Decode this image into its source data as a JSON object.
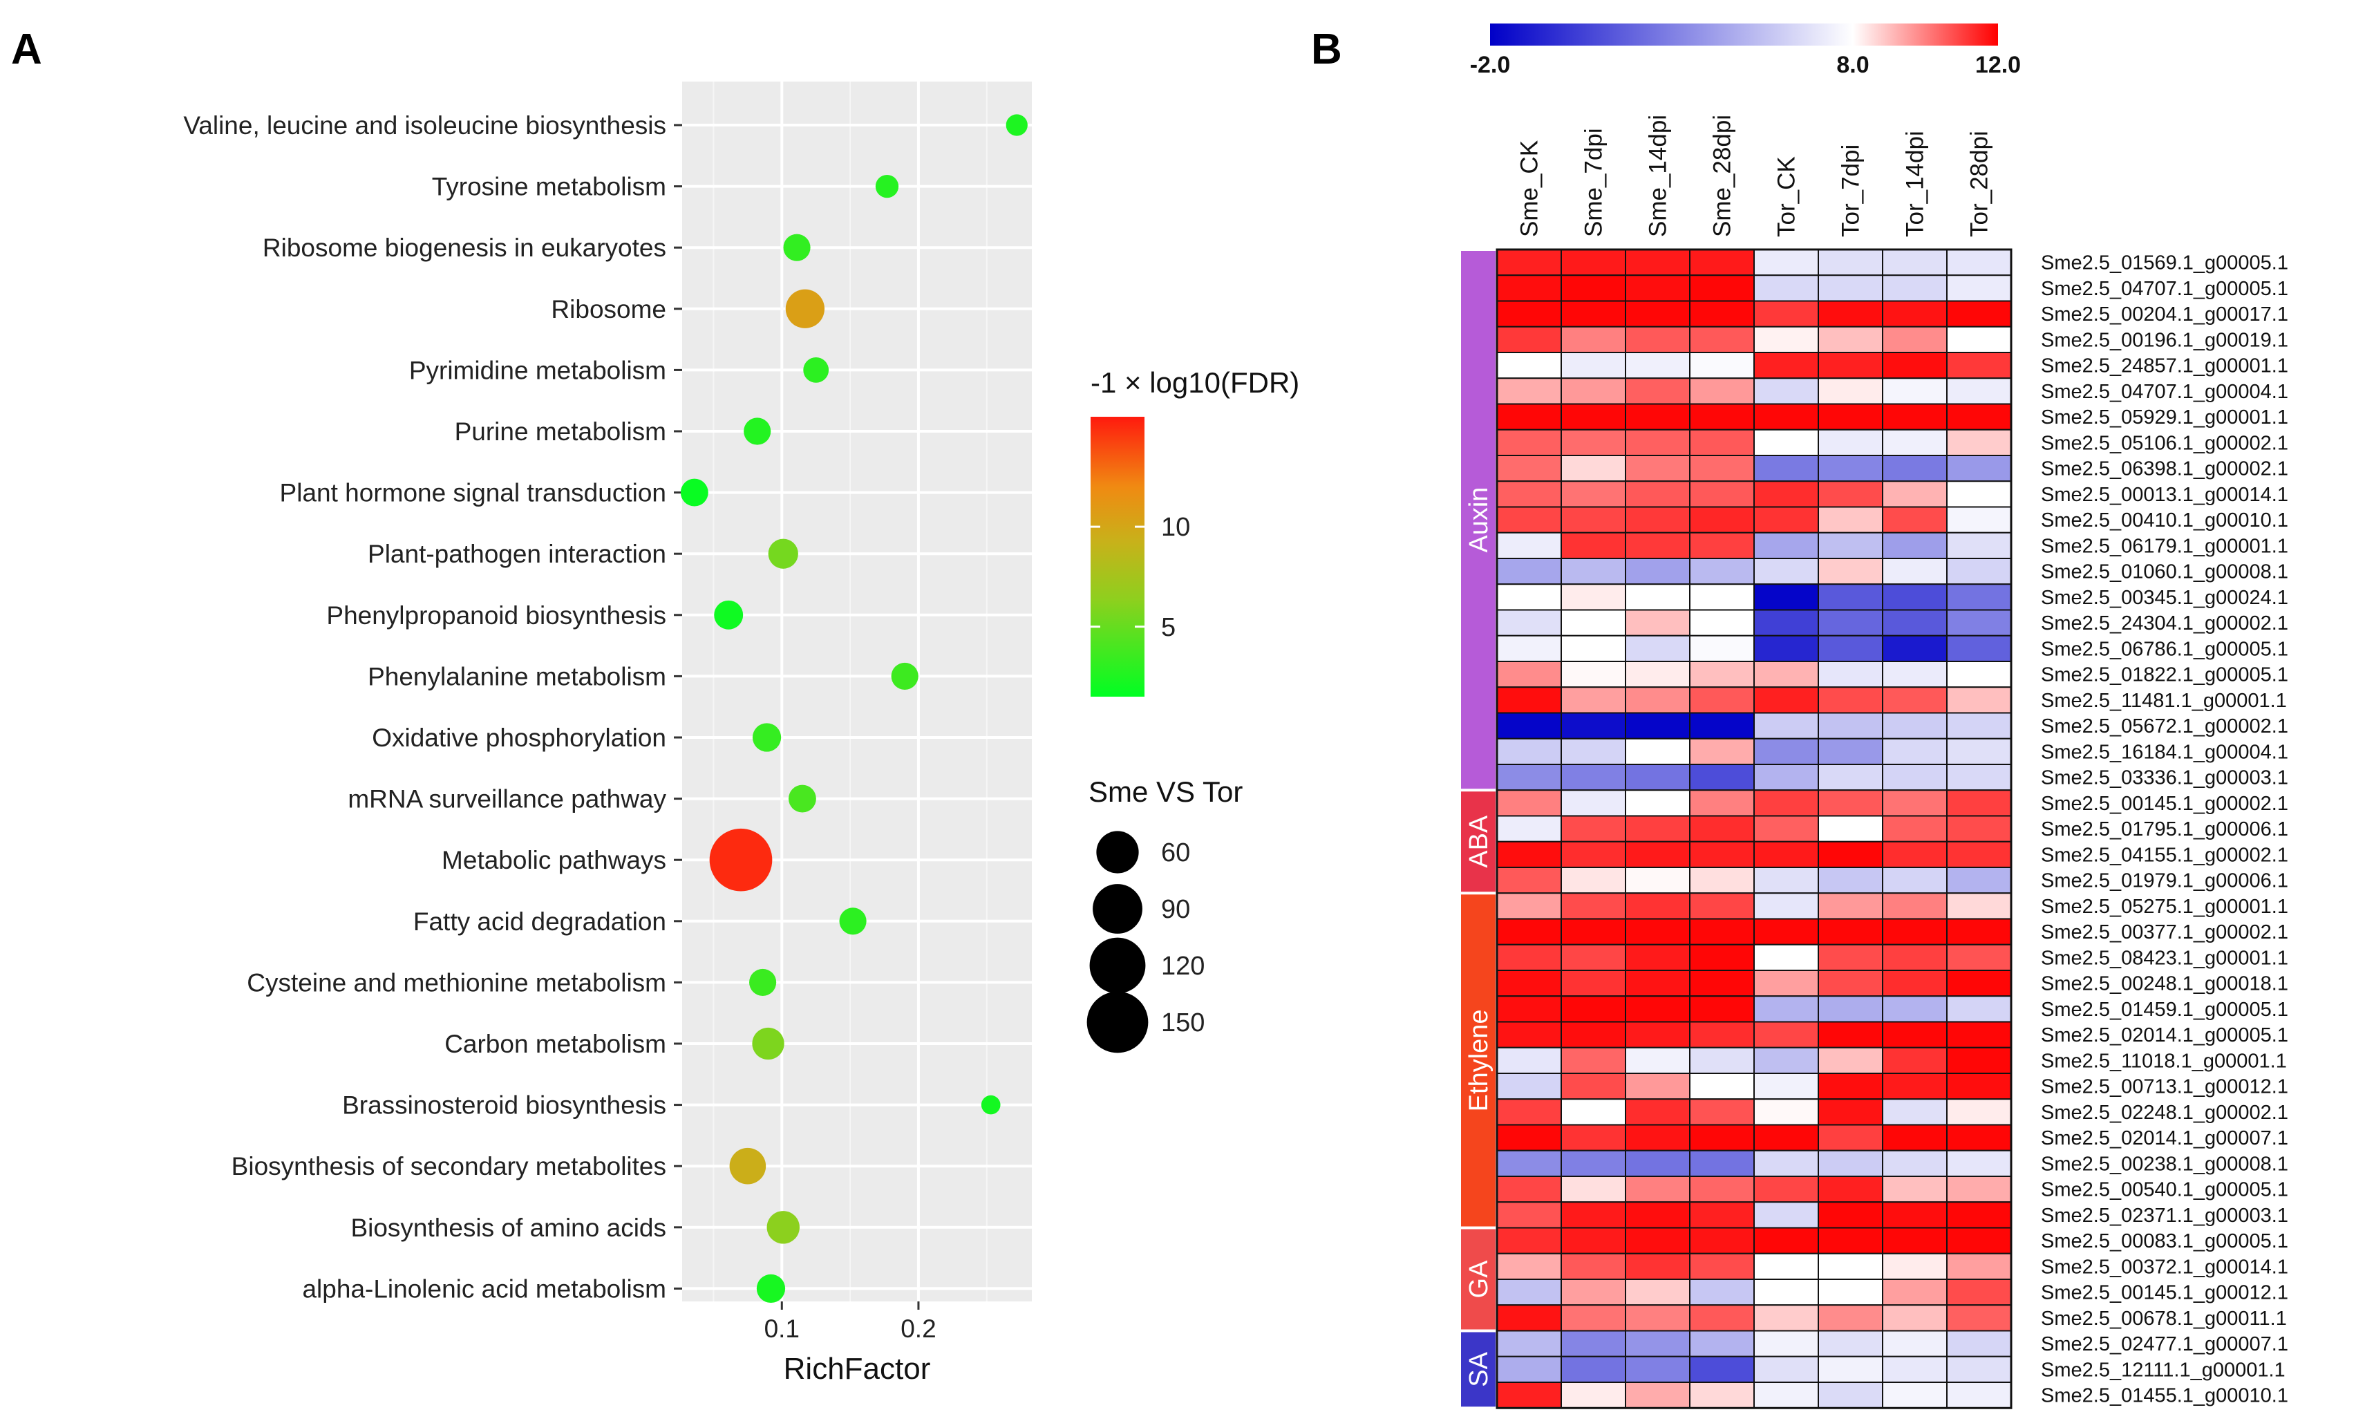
{
  "panelA": {
    "letter": "A",
    "chart_data": {
      "type": "scatter",
      "xlabel": "RichFactor",
      "xlim": [
        0.027,
        0.283
      ],
      "xticks": [
        0.1,
        0.2
      ],
      "xtick_labels": [
        "0.1",
        "0.2"
      ],
      "color_legend": {
        "title": "-1 × log10(FDR)",
        "ticks": [
          5,
          10
        ],
        "tick_labels": [
          "5",
          "10"
        ],
        "range": [
          1.5,
          15.5
        ]
      },
      "size_legend": {
        "title": "Sme VS Tor",
        "values": [
          60,
          90,
          120,
          150
        ],
        "labels": [
          "60",
          "90",
          "120",
          "150"
        ]
      },
      "terms": [
        {
          "name": "Valine, leucine and isoleucine biosynthesis",
          "rich": 0.272,
          "count": 8,
          "neglog": 2.5
        },
        {
          "name": "Tyrosine metabolism",
          "rich": 0.177,
          "count": 10,
          "neglog": 2.8
        },
        {
          "name": "Ribosome biogenesis in eukaryotes",
          "rich": 0.111,
          "count": 17,
          "neglog": 3.2
        },
        {
          "name": "Ribosome",
          "rich": 0.117,
          "count": 48,
          "neglog": 10.5
        },
        {
          "name": "Pyrimidine metabolism",
          "rich": 0.125,
          "count": 14,
          "neglog": 3.0
        },
        {
          "name": "Purine metabolism",
          "rich": 0.082,
          "count": 17,
          "neglog": 2.7
        },
        {
          "name": "Plant hormone signal transduction",
          "rich": 0.036,
          "count": 18,
          "neglog": 1.8
        },
        {
          "name": "Plant-pathogen interaction",
          "rich": 0.101,
          "count": 23,
          "neglog": 5.5
        },
        {
          "name": "Phenylpropanoid biosynthesis",
          "rich": 0.061,
          "count": 21,
          "neglog": 2.0
        },
        {
          "name": "Phenylalanine metabolism",
          "rich": 0.19,
          "count": 17,
          "neglog": 3.6
        },
        {
          "name": "Oxidative phosphorylation",
          "rich": 0.089,
          "count": 20,
          "neglog": 3.3
        },
        {
          "name": "mRNA surveillance pathway",
          "rich": 0.115,
          "count": 18,
          "neglog": 4.0
        },
        {
          "name": "Metabolic pathways",
          "rich": 0.07,
          "count": 158,
          "neglog": 15.0
        },
        {
          "name": "Fatty acid degradation",
          "rich": 0.152,
          "count": 17,
          "neglog": 3.0
        },
        {
          "name": "Cysteine and methionine metabolism",
          "rich": 0.086,
          "count": 17,
          "neglog": 3.5
        },
        {
          "name": "Carbon metabolism",
          "rich": 0.09,
          "count": 28,
          "neglog": 5.8
        },
        {
          "name": "Brassinosteroid biosynthesis",
          "rich": 0.253,
          "count": 5,
          "neglog": 2.2
        },
        {
          "name": "Biosynthesis of secondary metabolites",
          "rich": 0.075,
          "count": 40,
          "neglog": 9.5
        },
        {
          "name": "Biosynthesis of amino acids",
          "rich": 0.101,
          "count": 30,
          "neglog": 6.3
        },
        {
          "name": "alpha-Linolenic acid metabolism",
          "rich": 0.092,
          "count": 20,
          "neglog": 2.3
        }
      ]
    }
  },
  "panelB": {
    "letter": "B",
    "chart_data": {
      "type": "heatmap",
      "scale": {
        "ticks": [
          -2.0,
          8.0,
          12.0
        ],
        "tick_labels": [
          "-2.0",
          "8.0",
          "12.0"
        ],
        "min": -2.0,
        "mid": 8.0,
        "max": 12.0
      },
      "columns": [
        "Sme_CK",
        "Sme_7dpi",
        "Sme_14dpi",
        "Sme_28dpi",
        "Tor_CK",
        "Tor_7dpi",
        "Tor_14dpi",
        "Tor_28dpi"
      ],
      "groups": [
        {
          "name": "Auxin",
          "rows": 21,
          "color": "#b65bd8"
        },
        {
          "name": "ABA",
          "rows": 4,
          "color": "#e8334a"
        },
        {
          "name": "Ethylene",
          "rows": 13,
          "color": "#f5451d"
        },
        {
          "name": "GA",
          "rows": 4,
          "color": "#ef4b4b"
        },
        {
          "name": "SA",
          "rows": 3,
          "color": "#3b36c8"
        }
      ],
      "genes": [
        {
          "id": "Sme2.5_01569.1_g00005.1",
          "values": [
            11.5,
            11.6,
            11.6,
            11.6,
            7.2,
            6.8,
            6.8,
            7.0
          ]
        },
        {
          "id": "Sme2.5_04707.1_g00005.1",
          "values": [
            11.8,
            11.9,
            11.8,
            11.9,
            6.5,
            6.5,
            6.5,
            7.2
          ]
        },
        {
          "id": "Sme2.5_00204.1_g00017.1",
          "values": [
            11.9,
            11.9,
            11.9,
            11.9,
            11.1,
            11.8,
            11.7,
            11.9
          ]
        },
        {
          "id": "Sme2.5_00196.1_g00019.1",
          "values": [
            11.1,
            10.0,
            10.6,
            10.6,
            8.2,
            9.0,
            9.8,
            8.0
          ]
        },
        {
          "id": "Sme2.5_24857.1_g00001.1",
          "values": [
            8.0,
            7.3,
            7.4,
            7.8,
            11.5,
            11.5,
            11.8,
            11.1
          ]
        },
        {
          "id": "Sme2.5_04707.1_g00004.1",
          "values": [
            9.3,
            9.6,
            10.5,
            9.6,
            6.5,
            8.3,
            7.6,
            7.3
          ]
        },
        {
          "id": "Sme2.5_05929.1_g00001.1",
          "values": [
            11.9,
            11.9,
            11.9,
            11.9,
            11.9,
            11.9,
            11.9,
            11.9
          ]
        },
        {
          "id": "Sme2.5_05106.1_g00002.1",
          "values": [
            10.5,
            10.3,
            10.5,
            10.6,
            8.0,
            7.2,
            7.4,
            8.8
          ]
        },
        {
          "id": "Sme2.5_06398.1_g00002.1",
          "values": [
            10.3,
            8.6,
            10.1,
            10.3,
            2.8,
            3.2,
            2.8,
            4.0
          ]
        },
        {
          "id": "Sme2.5_00013.1_g00014.1",
          "values": [
            10.5,
            10.2,
            10.6,
            10.6,
            11.3,
            10.8,
            9.2,
            8.0
          ]
        },
        {
          "id": "Sme2.5_00410.1_g00010.1",
          "values": [
            10.9,
            10.9,
            11.1,
            11.4,
            11.2,
            8.9,
            10.8,
            7.6
          ]
        },
        {
          "id": "Sme2.5_06179.1_g00001.1",
          "values": [
            7.3,
            11.2,
            11.1,
            11.0,
            4.5,
            5.5,
            4.2,
            6.8
          ]
        },
        {
          "id": "Sme2.5_01060.1_g00008.1",
          "values": [
            4.5,
            5.3,
            4.3,
            5.3,
            6.5,
            8.8,
            7.3,
            6.3
          ]
        },
        {
          "id": "Sme2.5_00345.1_g00024.1",
          "values": [
            8.0,
            8.3,
            8.0,
            8.0,
            -1.8,
            1.5,
            1.0,
            2.5
          ]
        },
        {
          "id": "Sme2.5_24304.1_g00002.1",
          "values": [
            6.8,
            8.0,
            9.0,
            8.0,
            0.5,
            2.0,
            1.5,
            3.0
          ]
        },
        {
          "id": "Sme2.5_06786.1_g00005.1",
          "values": [
            7.5,
            8.0,
            6.5,
            7.8,
            -0.5,
            1.5,
            -1.0,
            1.8
          ]
        },
        {
          "id": "Sme2.5_01822.1_g00005.1",
          "values": [
            9.8,
            8.1,
            8.3,
            9.0,
            9.2,
            7.0,
            7.2,
            8.0
          ]
        },
        {
          "id": "Sme2.5_11481.1_g00001.1",
          "values": [
            11.8,
            9.5,
            9.8,
            10.6,
            11.5,
            10.8,
            10.6,
            9.0
          ]
        },
        {
          "id": "Sme2.5_05672.1_g00002.1",
          "values": [
            -1.8,
            -1.5,
            -1.8,
            -1.8,
            6.0,
            5.6,
            6.0,
            6.3
          ]
        },
        {
          "id": "Sme2.5_16184.1_g00004.1",
          "values": [
            6.0,
            6.3,
            8.0,
            9.3,
            3.5,
            4.0,
            6.5,
            6.8
          ]
        },
        {
          "id": "Sme2.5_03336.1_g00003.1",
          "values": [
            3.5,
            3.0,
            2.5,
            1.0,
            5.0,
            6.5,
            6.3,
            6.5
          ]
        },
        {
          "id": "Sme2.5_00145.1_g00002.1",
          "values": [
            10.0,
            7.2,
            8.0,
            10.0,
            11.0,
            10.6,
            10.2,
            11.0
          ]
        },
        {
          "id": "Sme2.5_01795.1_g00006.1",
          "values": [
            7.3,
            10.8,
            11.0,
            11.3,
            10.5,
            8.0,
            10.5,
            10.8
          ]
        },
        {
          "id": "Sme2.5_04155.1_g00002.1",
          "values": [
            11.8,
            11.3,
            11.6,
            11.5,
            11.6,
            11.9,
            11.3,
            11.2
          ]
        },
        {
          "id": "Sme2.5_01979.1_g00006.1",
          "values": [
            10.6,
            8.4,
            8.1,
            8.5,
            6.8,
            5.8,
            6.3,
            5.0
          ]
        },
        {
          "id": "Sme2.5_05275.1_g00001.1",
          "values": [
            9.5,
            10.8,
            11.2,
            10.9,
            7.0,
            9.6,
            10.0,
            8.6
          ]
        },
        {
          "id": "Sme2.5_00377.1_g00002.1",
          "values": [
            11.9,
            11.9,
            11.9,
            11.9,
            11.9,
            11.9,
            11.9,
            11.9
          ]
        },
        {
          "id": "Sme2.5_08423.1_g00001.1",
          "values": [
            11.1,
            10.9,
            11.6,
            11.9,
            8.0,
            10.8,
            11.0,
            10.7
          ]
        },
        {
          "id": "Sme2.5_00248.1_g00018.1",
          "values": [
            11.8,
            11.2,
            11.7,
            11.9,
            9.5,
            10.8,
            11.3,
            11.9
          ]
        },
        {
          "id": "Sme2.5_01459.1_g00005.1",
          "values": [
            11.8,
            11.9,
            11.9,
            11.9,
            5.0,
            4.8,
            5.0,
            6.3
          ]
        },
        {
          "id": "Sme2.5_02014.1_g00005.1",
          "values": [
            11.7,
            11.8,
            11.6,
            11.3,
            10.9,
            11.9,
            11.9,
            11.9
          ]
        },
        {
          "id": "Sme2.5_11018.1_g00001.1",
          "values": [
            7.0,
            10.4,
            7.5,
            6.8,
            5.5,
            9.0,
            11.2,
            11.9
          ]
        },
        {
          "id": "Sme2.5_00713.1_g00012.1",
          "values": [
            6.3,
            10.8,
            9.6,
            8.0,
            7.5,
            11.8,
            11.6,
            11.8
          ]
        },
        {
          "id": "Sme2.5_02248.1_g00002.1",
          "values": [
            11.0,
            8.0,
            11.3,
            10.7,
            8.1,
            11.7,
            6.8,
            8.3
          ]
        },
        {
          "id": "Sme2.5_02014.1_g00007.1",
          "values": [
            11.9,
            11.2,
            11.7,
            11.9,
            11.9,
            11.0,
            11.9,
            11.9
          ]
        },
        {
          "id": "Sme2.5_00238.1_g00008.1",
          "values": [
            3.5,
            3.0,
            2.5,
            2.5,
            6.5,
            6.0,
            6.6,
            7.0
          ]
        },
        {
          "id": "Sme2.5_00540.1_g00005.1",
          "values": [
            10.9,
            8.5,
            10.0,
            10.4,
            10.9,
            11.5,
            9.0,
            9.3
          ]
        },
        {
          "id": "Sme2.5_02371.1_g00003.1",
          "values": [
            10.7,
            11.6,
            11.8,
            11.5,
            6.5,
            11.9,
            11.8,
            11.9
          ]
        },
        {
          "id": "Sme2.5_00083.1_g00005.1",
          "values": [
            11.3,
            11.6,
            11.8,
            11.7,
            11.9,
            11.9,
            11.9,
            11.9
          ]
        },
        {
          "id": "Sme2.5_00372.1_g00014.1",
          "values": [
            9.3,
            10.6,
            11.2,
            10.8,
            8.0,
            8.0,
            8.3,
            9.5
          ]
        },
        {
          "id": "Sme2.5_00145.1_g00012.1",
          "values": [
            5.6,
            9.5,
            8.8,
            5.8,
            8.0,
            8.0,
            9.5,
            10.8
          ]
        },
        {
          "id": "Sme2.5_00678.1_g00011.1",
          "values": [
            11.7,
            10.2,
            10.0,
            10.6,
            8.8,
            9.8,
            9.0,
            10.5
          ]
        },
        {
          "id": "Sme2.5_02477.1_g00007.1",
          "values": [
            5.3,
            3.2,
            3.8,
            5.0,
            7.5,
            6.8,
            7.4,
            6.4
          ]
        },
        {
          "id": "Sme2.5_12111.1_g00001.1",
          "values": [
            4.8,
            2.5,
            3.0,
            1.0,
            6.8,
            7.5,
            7.1,
            6.8
          ]
        },
        {
          "id": "Sme2.5_01455.1_g00010.1",
          "values": [
            11.5,
            8.3,
            9.3,
            8.6,
            7.5,
            6.6,
            7.6,
            7.4
          ]
        }
      ]
    }
  }
}
